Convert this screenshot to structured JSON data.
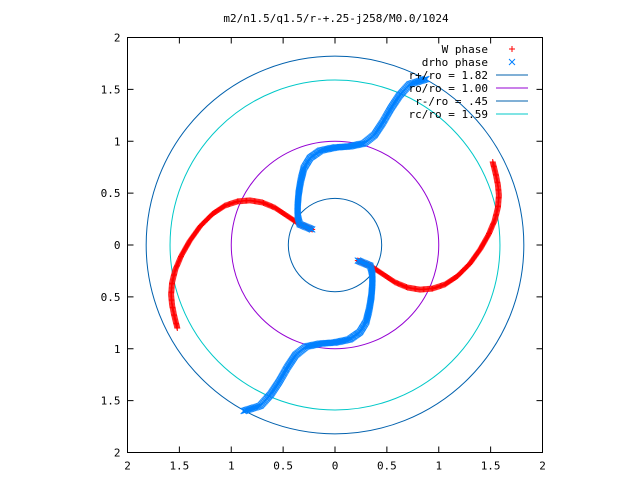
{
  "chart_data": {
    "type": "scatter",
    "title": "m2/n1.5/q1.5/r-+.25-j258/M0.0/1024",
    "xlabel": "",
    "ylabel": "",
    "xlim": [
      -2,
      2
    ],
    "ylim": [
      -2,
      2
    ],
    "x_tick_values": [
      -2,
      -1.5,
      -1,
      -0.5,
      0,
      0.5,
      1,
      1.5,
      2
    ],
    "x_tick_labels": [
      "2",
      "1.5",
      "1",
      "0.5",
      "0",
      "0.5",
      "1",
      "1.5",
      "2"
    ],
    "y_tick_values": [
      2,
      1.5,
      1,
      0.5,
      0,
      -0.5,
      -1,
      -1.5,
      -2
    ],
    "y_tick_labels": [
      "2",
      "1.5",
      "1",
      "0.5",
      "0",
      "0.5",
      "1",
      "1.5",
      "2"
    ],
    "grid": false,
    "legend_position": "top-right",
    "series": [
      {
        "name": "W phase",
        "kind": "points",
        "marker": "+",
        "color": "#ff0000",
        "points": [
          [
            -0.22,
            0.15
          ],
          [
            -0.34,
            0.2
          ],
          [
            -0.46,
            0.28
          ],
          [
            -0.58,
            0.36
          ],
          [
            -0.7,
            0.41
          ],
          [
            -0.82,
            0.43
          ],
          [
            -0.94,
            0.42
          ],
          [
            -1.06,
            0.38
          ],
          [
            -1.18,
            0.3
          ],
          [
            -1.3,
            0.18
          ],
          [
            -1.4,
            0.04
          ],
          [
            -1.48,
            -0.1
          ],
          [
            -1.54,
            -0.24
          ],
          [
            -1.57,
            -0.36
          ],
          [
            -1.58,
            -0.48
          ],
          [
            -1.57,
            -0.58
          ],
          [
            -1.55,
            -0.68
          ],
          [
            -1.52,
            -0.8
          ],
          [
            0.22,
            -0.15
          ],
          [
            0.34,
            -0.2
          ],
          [
            0.46,
            -0.28
          ],
          [
            0.58,
            -0.36
          ],
          [
            0.7,
            -0.41
          ],
          [
            0.82,
            -0.43
          ],
          [
            0.94,
            -0.42
          ],
          [
            1.06,
            -0.38
          ],
          [
            1.18,
            -0.3
          ],
          [
            1.3,
            -0.18
          ],
          [
            1.4,
            -0.04
          ],
          [
            1.48,
            0.1
          ],
          [
            1.54,
            0.24
          ],
          [
            1.57,
            0.36
          ],
          [
            1.58,
            0.48
          ],
          [
            1.57,
            0.58
          ],
          [
            1.55,
            0.68
          ],
          [
            1.52,
            0.8
          ]
        ]
      },
      {
        "name": "drho phase",
        "kind": "points",
        "marker": "x",
        "color": "#0080ff",
        "points": [
          [
            -0.22,
            0.15
          ],
          [
            -0.34,
            0.2
          ],
          [
            -0.36,
            0.28
          ],
          [
            -0.36,
            0.38
          ],
          [
            -0.35,
            0.5
          ],
          [
            -0.33,
            0.62
          ],
          [
            -0.3,
            0.74
          ],
          [
            -0.24,
            0.84
          ],
          [
            -0.14,
            0.91
          ],
          [
            0.0,
            0.94
          ],
          [
            0.14,
            0.95
          ],
          [
            0.28,
            0.98
          ],
          [
            0.38,
            1.06
          ],
          [
            0.46,
            1.18
          ],
          [
            0.54,
            1.32
          ],
          [
            0.62,
            1.44
          ],
          [
            0.72,
            1.55
          ],
          [
            0.88,
            1.6
          ],
          [
            0.22,
            -0.15
          ],
          [
            0.34,
            -0.2
          ],
          [
            0.36,
            -0.28
          ],
          [
            0.36,
            -0.38
          ],
          [
            0.35,
            -0.5
          ],
          [
            0.33,
            -0.62
          ],
          [
            0.3,
            -0.74
          ],
          [
            0.24,
            -0.84
          ],
          [
            0.14,
            -0.91
          ],
          [
            0.0,
            -0.94
          ],
          [
            -0.14,
            -0.95
          ],
          [
            -0.28,
            -0.98
          ],
          [
            -0.38,
            -1.06
          ],
          [
            -0.46,
            -1.18
          ],
          [
            -0.54,
            -1.32
          ],
          [
            -0.62,
            -1.44
          ],
          [
            -0.72,
            -1.55
          ],
          [
            -0.88,
            -1.6
          ]
        ]
      },
      {
        "name": "r+/ro = 1.82",
        "kind": "circle",
        "radius": 1.82,
        "color": "#0060ad"
      },
      {
        "name": "ro/ro = 1.00",
        "kind": "circle",
        "radius": 1.0,
        "color": "#9400d3"
      },
      {
        "name": "r-/ro = .45",
        "kind": "circle",
        "radius": 0.45,
        "color": "#0060ad"
      },
      {
        "name": "rc/ro = 1.59",
        "kind": "circle",
        "radius": 1.59,
        "color": "#00c8c8"
      }
    ]
  }
}
